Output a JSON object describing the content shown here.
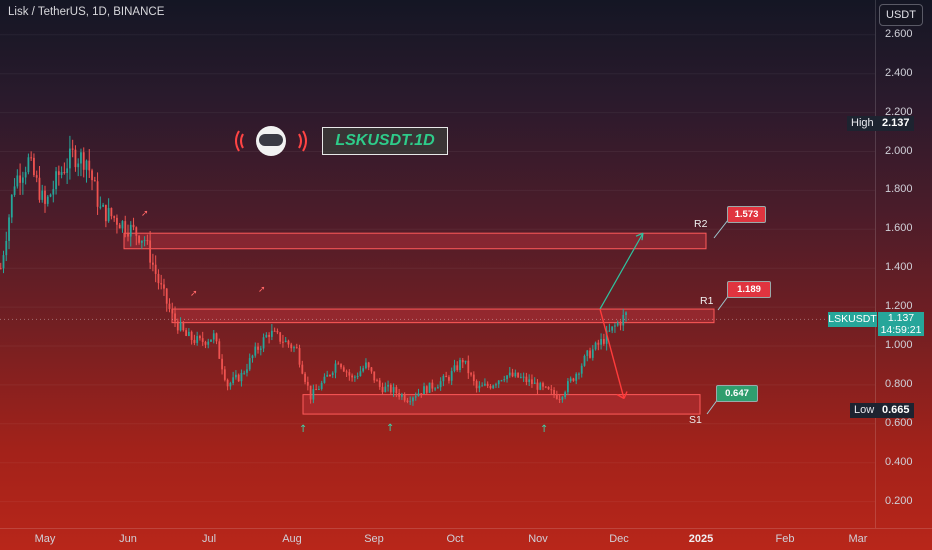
{
  "header": {
    "title": "Lisk / TetherUS, 1D, BINANCE"
  },
  "scale": {
    "unit": "USDT"
  },
  "logo": {
    "text": "LSKUSDT.1D",
    "icon": "astronaut-helmet-icon"
  },
  "colors": {
    "up": "#26a69a",
    "down": "#ef5350",
    "zone_fill": "#c0343c",
    "zone_border": "#ff5a5a"
  },
  "high": {
    "label": "High",
    "value": "2.137"
  },
  "low": {
    "label": "Low",
    "value": "0.665"
  },
  "current": {
    "symbol": "LSKUSDT",
    "price": "1.137",
    "countdown": "14:59:21"
  },
  "levels": {
    "r2": {
      "name": "R2",
      "value": "1.573"
    },
    "r1": {
      "name": "R1",
      "value": "1.189"
    },
    "s1": {
      "name": "S1",
      "value": "0.647"
    }
  },
  "chart_data": {
    "type": "candlestick",
    "title": "Lisk / TetherUS, 1D, BINANCE",
    "ylabel": "USDT",
    "ylim": [
      0.1,
      2.7
    ],
    "y_ticks": [
      "2.600",
      "2.400",
      "2.200",
      "2.000",
      "1.800",
      "1.600",
      "1.400",
      "1.200",
      "1.000",
      "0.800",
      "0.600",
      "0.400",
      "0.200"
    ],
    "x_ticks": [
      {
        "label": "May",
        "bold": false
      },
      {
        "label": "Jun",
        "bold": false
      },
      {
        "label": "Jul",
        "bold": false
      },
      {
        "label": "Aug",
        "bold": false
      },
      {
        "label": "Sep",
        "bold": false
      },
      {
        "label": "Oct",
        "bold": false
      },
      {
        "label": "Nov",
        "bold": false
      },
      {
        "label": "Dec",
        "bold": false
      },
      {
        "label": "2025",
        "bold": true
      },
      {
        "label": "Feb",
        "bold": false
      },
      {
        "label": "Mar",
        "bold": false
      }
    ],
    "zones": [
      {
        "name": "R2",
        "low": 1.5,
        "high": 1.58
      },
      {
        "name": "R1",
        "low": 1.12,
        "high": 1.19
      },
      {
        "name": "S1",
        "low": 0.65,
        "high": 0.75
      }
    ],
    "projections": [
      {
        "name": "up",
        "from": 1.19,
        "to": 1.58
      },
      {
        "name": "down",
        "from": 1.19,
        "to": 0.73
      }
    ],
    "close_path": [
      {
        "d": "2024-04-15",
        "v": 1.4
      },
      {
        "d": "2024-04-20",
        "v": 1.85
      },
      {
        "d": "2024-04-25",
        "v": 1.95
      },
      {
        "d": "2024-05-01",
        "v": 1.72
      },
      {
        "d": "2024-05-06",
        "v": 1.88
      },
      {
        "d": "2024-05-11",
        "v": 1.98
      },
      {
        "d": "2024-05-16",
        "v": 1.96
      },
      {
        "d": "2024-05-21",
        "v": 1.7
      },
      {
        "d": "2024-05-26",
        "v": 1.66
      },
      {
        "d": "2024-06-01",
        "v": 1.6
      },
      {
        "d": "2024-06-06",
        "v": 1.55
      },
      {
        "d": "2024-06-11",
        "v": 1.33
      },
      {
        "d": "2024-06-16",
        "v": 1.15
      },
      {
        "d": "2024-06-21",
        "v": 1.05
      },
      {
        "d": "2024-06-26",
        "v": 1.02
      },
      {
        "d": "2024-07-01",
        "v": 1.05
      },
      {
        "d": "2024-07-06",
        "v": 0.8
      },
      {
        "d": "2024-07-11",
        "v": 0.85
      },
      {
        "d": "2024-07-16",
        "v": 0.97
      },
      {
        "d": "2024-07-21",
        "v": 1.07
      },
      {
        "d": "2024-07-26",
        "v": 1.03
      },
      {
        "d": "2024-07-31",
        "v": 0.98
      },
      {
        "d": "2024-08-05",
        "v": 0.74
      },
      {
        "d": "2024-08-10",
        "v": 0.82
      },
      {
        "d": "2024-08-15",
        "v": 0.93
      },
      {
        "d": "2024-08-20",
        "v": 0.83
      },
      {
        "d": "2024-08-25",
        "v": 0.9
      },
      {
        "d": "2024-08-30",
        "v": 0.79
      },
      {
        "d": "2024-09-04",
        "v": 0.77
      },
      {
        "d": "2024-09-09",
        "v": 0.73
      },
      {
        "d": "2024-09-14",
        "v": 0.77
      },
      {
        "d": "2024-09-19",
        "v": 0.8
      },
      {
        "d": "2024-09-24",
        "v": 0.84
      },
      {
        "d": "2024-09-29",
        "v": 0.93
      },
      {
        "d": "2024-10-04",
        "v": 0.78
      },
      {
        "d": "2024-10-09",
        "v": 0.8
      },
      {
        "d": "2024-10-14",
        "v": 0.85
      },
      {
        "d": "2024-10-19",
        "v": 0.84
      },
      {
        "d": "2024-10-24",
        "v": 0.81
      },
      {
        "d": "2024-10-29",
        "v": 0.77
      },
      {
        "d": "2024-11-03",
        "v": 0.74
      },
      {
        "d": "2024-11-08",
        "v": 0.84
      },
      {
        "d": "2024-11-13",
        "v": 0.95
      },
      {
        "d": "2024-11-18",
        "v": 1.02
      },
      {
        "d": "2024-11-23",
        "v": 1.1
      },
      {
        "d": "2024-11-27",
        "v": 1.16
      }
    ]
  }
}
